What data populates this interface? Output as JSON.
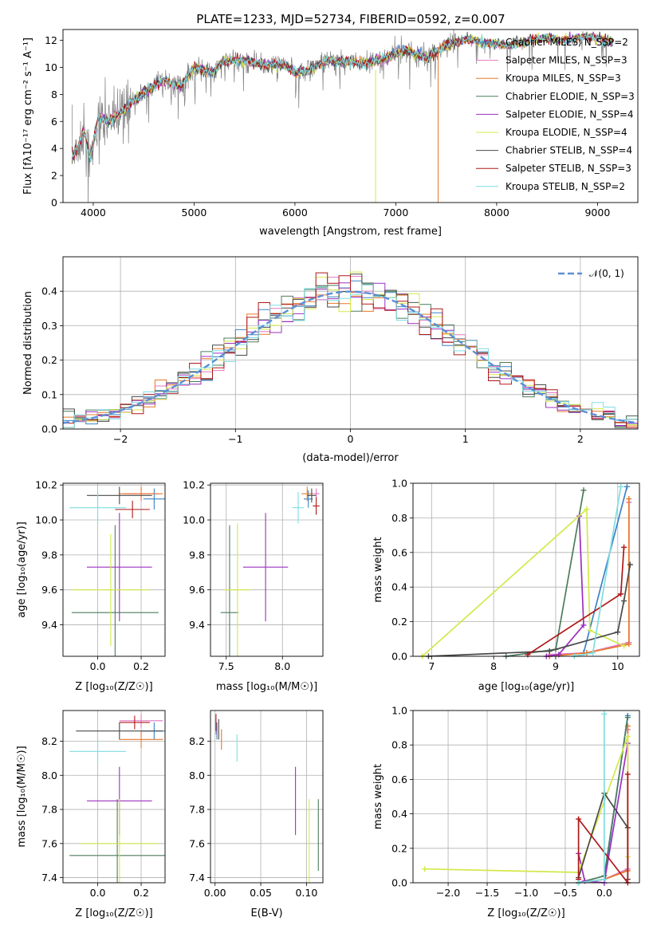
{
  "figure_title": "PLATE=1233, MJD=52734, FIBERID=0592, z=0.007",
  "colors": {
    "Chabrier MILES": "#3b82c6",
    "Salpeter MILES": "#e377c2",
    "Kroupa MILES": "#e8782a",
    "Chabrier ELODIE": "#4c7c5c",
    "Salpeter ELODIE": "#9b30c0",
    "Kroupa ELODIE": "#d4e84a",
    "Chabrier STELIB": "#4a4a4a",
    "Salpeter STELIB": "#b01818",
    "Kroupa STELIB": "#7fdde0",
    "data": "#808080",
    "gauss": "#5b8fd6"
  },
  "chart_data": [
    {
      "type": "line",
      "title": "PLATE=1233, MJD=52734, FIBERID=0592, z=0.007",
      "xlabel": "wavelength [Angstrom, rest frame]",
      "ylabel": "Flux [fλ10⁻¹⁷ erg cm⁻² s⁻¹ A⁻¹]",
      "xlim": [
        3700,
        9400
      ],
      "ylim": [
        0,
        12.8
      ],
      "xticks": [
        4000,
        5000,
        6000,
        7000,
        8000,
        9000
      ],
      "yticks": [
        0,
        2,
        4,
        6,
        8,
        10,
        12
      ],
      "grid": false,
      "legend_position": "right",
      "spectrum_anchors": {
        "x": [
          3790,
          3850,
          3900,
          3970,
          4050,
          4150,
          4250,
          4350,
          4500,
          4700,
          4862,
          5000,
          5175,
          5300,
          5500,
          5700,
          5900,
          6000,
          6150,
          6300,
          6563,
          6700,
          6900,
          7100,
          7300,
          7500,
          7700,
          7900,
          8100,
          8300,
          8500,
          8700,
          8900,
          9100
        ],
        "y": [
          3.5,
          4.0,
          5.4,
          3.2,
          6.3,
          6.0,
          6.5,
          7.2,
          8.2,
          9.0,
          8.6,
          10.0,
          9.6,
          10.5,
          10.5,
          10.2,
          10.2,
          9.6,
          9.8,
          10.5,
          10.4,
          10.3,
          10.7,
          11.3,
          10.7,
          11.6,
          12.1,
          11.8,
          11.6,
          11.9,
          12.2,
          12.0,
          12.3,
          11.9
        ]
      },
      "series": [
        {
          "name": "Chabrier MILES, N_SSP=2"
        },
        {
          "name": "Salpeter MILES, N_SSP=3"
        },
        {
          "name": "Kroupa MILES, N_SSP=3"
        },
        {
          "name": "Chabrier ELODIE, N_SSP=3"
        },
        {
          "name": "Salpeter ELODIE, N_SSP=4"
        },
        {
          "name": "Kroupa ELODIE, N_SSP=4"
        },
        {
          "name": "Chabrier STELIB, N_SSP=4"
        },
        {
          "name": "Salpeter STELIB, N_SSP=3"
        },
        {
          "name": "Kroupa STELIB, N_SSP=2"
        }
      ]
    },
    {
      "type": "bar",
      "xlabel": "(data-model)/error",
      "ylabel": "Normed distribution",
      "xlim": [
        -2.5,
        2.5
      ],
      "ylim": [
        0,
        0.5
      ],
      "xticks": [
        -2,
        -1,
        0,
        1,
        2
      ],
      "xticklabels": [
        "−2",
        "−1",
        "0",
        "1",
        "2"
      ],
      "yticks": [
        0.0,
        0.1,
        0.2,
        0.3,
        0.4
      ],
      "grid": true,
      "legend_position": "top-right",
      "legend": "𝒩(0, 1)",
      "bin_width": 0.1,
      "histogram_bins": [
        -2.5,
        2.5,
        50
      ]
    },
    {
      "type": "scatter",
      "xlabel": "Z [log₁₀(Z/Z☉)]",
      "ylabel": "age  [log₁₀(age/yr)]",
      "xlim": [
        -0.16,
        0.31
      ],
      "ylim": [
        9.22,
        10.21
      ],
      "xticks": [
        0.0,
        0.2
      ],
      "yticks": [
        9.4,
        9.6,
        9.8,
        10.0,
        10.2
      ],
      "grid": true,
      "errorbars": [
        {
          "series": "Chabrier MILES",
          "x": 0.26,
          "y": 10.12,
          "xerr": 0.05,
          "yerr": 0.06
        },
        {
          "series": "Salpeter MILES",
          "x": 0.2,
          "y": 10.15,
          "xerr": 0.08,
          "yerr": 0.04
        },
        {
          "series": "Kroupa MILES",
          "x": 0.2,
          "y": 10.15,
          "xerr": 0.1,
          "yerr": 0.04
        },
        {
          "series": "Chabrier ELODIE",
          "x": 0.08,
          "y": 9.47,
          "xerr": 0.2,
          "yerr": 0.5
        },
        {
          "series": "Salpeter ELODIE",
          "x": 0.1,
          "y": 9.73,
          "xerr": 0.15,
          "yerr": 0.31
        },
        {
          "series": "Kroupa ELODIE",
          "x": 0.06,
          "y": 9.6,
          "xerr": 0.18,
          "yerr": 0.32
        },
        {
          "series": "Chabrier STELIB",
          "x": 0.1,
          "y": 10.14,
          "xerr": 0.15,
          "yerr": 0.05
        },
        {
          "series": "Salpeter STELIB",
          "x": 0.16,
          "y": 10.06,
          "xerr": 0.08,
          "yerr": 0.05
        },
        {
          "series": "Kroupa STELIB",
          "x": 0.0,
          "y": 10.07,
          "xerr": 0.13,
          "yerr": 0.1
        }
      ]
    },
    {
      "type": "scatter",
      "xlabel": "mass [log₁₀(M/M☉)]",
      "xlim": [
        7.36,
        8.36
      ],
      "ylim": [
        9.22,
        10.21
      ],
      "xticks": [
        7.5,
        8.0
      ],
      "yticks": [
        9.4,
        9.6,
        9.8,
        10.0,
        10.2
      ],
      "grid": true,
      "errorbars": [
        {
          "series": "Chabrier MILES",
          "x": 8.23,
          "y": 10.12,
          "xerr": 0.04,
          "yerr": 0.05
        },
        {
          "series": "Salpeter MILES",
          "x": 8.3,
          "y": 10.15,
          "xerr": 0.03,
          "yerr": 0.03
        },
        {
          "series": "Kroupa MILES",
          "x": 8.22,
          "y": 10.15,
          "xerr": 0.05,
          "yerr": 0.04
        },
        {
          "series": "Chabrier ELODIE",
          "x": 7.53,
          "y": 9.47,
          "xerr": 0.08,
          "yerr": 0.5
        },
        {
          "series": "Salpeter ELODIE",
          "x": 7.85,
          "y": 9.73,
          "xerr": 0.2,
          "yerr": 0.31
        },
        {
          "series": "Kroupa ELODIE",
          "x": 7.6,
          "y": 9.6,
          "xerr": 0.12,
          "yerr": 0.38
        },
        {
          "series": "Chabrier STELIB",
          "x": 8.26,
          "y": 10.14,
          "xerr": 0.04,
          "yerr": 0.04
        },
        {
          "series": "Salpeter STELIB",
          "x": 8.3,
          "y": 10.08,
          "xerr": 0.03,
          "yerr": 0.05
        },
        {
          "series": "Kroupa STELIB",
          "x": 8.14,
          "y": 10.07,
          "xerr": 0.05,
          "yerr": 0.09
        }
      ]
    },
    {
      "type": "line",
      "xlabel": "age  [log₁₀(age/yr)]",
      "ylabel": "mass weight",
      "xlim": [
        6.7,
        10.35
      ],
      "ylim": [
        0,
        1
      ],
      "xticks": [
        7,
        8,
        9,
        10
      ],
      "yticks": [
        0.0,
        0.2,
        0.4,
        0.6,
        0.8,
        1.0
      ],
      "grid": true,
      "series": [
        {
          "series": "Chabrier MILES",
          "x": [
            8.9,
            9.45,
            10.15
          ],
          "y": [
            0.0,
            0.02,
            0.98
          ]
        },
        {
          "series": "Salpeter MILES",
          "x": [
            8.9,
            9.5,
            10.18,
            10.18
          ],
          "y": [
            0.01,
            0.02,
            0.08,
            0.89
          ]
        },
        {
          "series": "Kroupa MILES",
          "x": [
            8.9,
            9.5,
            10.18,
            10.18
          ],
          "y": [
            0.0,
            0.02,
            0.07,
            0.91
          ]
        },
        {
          "series": "Chabrier ELODIE",
          "x": [
            8.2,
            9.0,
            9.45
          ],
          "y": [
            0.0,
            0.04,
            0.96
          ]
        },
        {
          "series": "Salpeter ELODIE",
          "x": [
            8.85,
            9.05,
            9.45,
            9.38
          ],
          "y": [
            0.0,
            0.01,
            0.18,
            0.81
          ]
        },
        {
          "series": "Kroupa ELODIE",
          "x": [
            6.85,
            9.5,
            9.55,
            10.1
          ],
          "y": [
            0.0,
            0.85,
            0.15,
            0.06
          ]
        },
        {
          "series": "Chabrier STELIB",
          "x": [
            6.95,
            8.9,
            10.0,
            10.1,
            10.2
          ],
          "y": [
            0.0,
            0.03,
            0.14,
            0.32,
            0.53
          ]
        },
        {
          "series": "Salpeter STELIB",
          "x": [
            8.55,
            10.05,
            10.1
          ],
          "y": [
            0.01,
            0.36,
            0.63
          ]
        },
        {
          "series": "Kroupa STELIB",
          "x": [
            9.3,
            9.6,
            10.05
          ],
          "y": [
            0.0,
            0.02,
            0.98
          ]
        }
      ]
    },
    {
      "type": "scatter",
      "xlabel": "Z [log₁₀(Z/Z☉)]",
      "ylabel": "mass [log₁₀(M/M☉)]",
      "xlim": [
        -0.16,
        0.31
      ],
      "ylim": [
        7.37,
        8.38
      ],
      "xticks": [
        0.0,
        0.2
      ],
      "yticks": [
        7.4,
        7.6,
        7.8,
        8.0,
        8.2
      ],
      "grid": true,
      "errorbars": [
        {
          "series": "Chabrier MILES",
          "x": 0.26,
          "y": 8.26,
          "xerr": 0.06,
          "yerr": 0.05
        },
        {
          "series": "Salpeter MILES",
          "x": 0.2,
          "y": 8.32,
          "xerr": 0.1,
          "yerr": 0.04
        },
        {
          "series": "Kroupa MILES",
          "x": 0.2,
          "y": 8.21,
          "xerr": 0.1,
          "yerr": 0.05
        },
        {
          "series": "Chabrier ELODIE",
          "x": 0.09,
          "y": 7.53,
          "xerr": 0.22,
          "yerr": 0.33
        },
        {
          "series": "Salpeter ELODIE",
          "x": 0.1,
          "y": 7.85,
          "xerr": 0.15,
          "yerr": 0.2
        },
        {
          "series": "Kroupa ELODIE",
          "x": 0.1,
          "y": 7.6,
          "xerr": 0.18,
          "yerr": 0.26
        },
        {
          "series": "Chabrier STELIB",
          "x": 0.1,
          "y": 8.26,
          "xerr": 0.2,
          "yerr": 0.05
        },
        {
          "series": "Salpeter STELIB",
          "x": 0.17,
          "y": 8.31,
          "xerr": 0.07,
          "yerr": 0.04
        },
        {
          "series": "Kroupa STELIB",
          "x": 0.0,
          "y": 8.14,
          "xerr": 0.13,
          "yerr": 0.07
        }
      ]
    },
    {
      "type": "scatter",
      "xlabel": "E(B-V)",
      "xlim": [
        -0.005,
        0.118
      ],
      "ylim": [
        7.37,
        8.38
      ],
      "xticks": [
        0.0,
        0.05,
        0.1
      ],
      "xticklabels": [
        "0.00",
        "0.05",
        "0.10"
      ],
      "yticks": [
        7.4,
        7.6,
        7.8,
        8.0,
        8.2
      ],
      "grid": true,
      "errorbars": [
        {
          "series": "Chabrier MILES",
          "x": 0.002,
          "y": 8.26,
          "xerr": 0.0,
          "yerr": 0.05
        },
        {
          "series": "Salpeter MILES",
          "x": 0.001,
          "y": 8.29,
          "xerr": 0.0,
          "yerr": 0.05
        },
        {
          "series": "Kroupa MILES",
          "x": 0.007,
          "y": 8.21,
          "xerr": 0.0,
          "yerr": 0.06
        },
        {
          "series": "Chabrier ELODIE",
          "x": 0.113,
          "y": 7.65,
          "xerr": 0.0,
          "yerr": 0.21
        },
        {
          "series": "Salpeter ELODIE",
          "x": 0.088,
          "y": 7.85,
          "xerr": 0.0,
          "yerr": 0.2
        },
        {
          "series": "Kroupa ELODIE",
          "x": 0.103,
          "y": 7.6,
          "xerr": 0.0,
          "yerr": 0.26
        },
        {
          "series": "Chabrier STELIB",
          "x": 0.004,
          "y": 8.27,
          "xerr": 0.0,
          "yerr": 0.06
        },
        {
          "series": "Salpeter STELIB",
          "x": 0.001,
          "y": 8.31,
          "xerr": 0.0,
          "yerr": 0.05
        },
        {
          "series": "Kroupa STELIB",
          "x": 0.024,
          "y": 8.16,
          "xerr": 0.0,
          "yerr": 0.08
        }
      ]
    },
    {
      "type": "line",
      "xlabel": "Z [log₁₀(Z/Z☉)]",
      "ylabel": "mass weight",
      "xlim": [
        -2.45,
        0.45
      ],
      "ylim": [
        0,
        1
      ],
      "xticks": [
        -2.0,
        -1.5,
        -1.0,
        -0.5,
        0.0
      ],
      "xticklabels": [
        "−2.0",
        "−1.5",
        "−1.0",
        "−0.5",
        "0.0"
      ],
      "yticks": [
        0.0,
        0.2,
        0.4,
        0.6,
        0.8,
        1.0
      ],
      "grid": true,
      "series": [
        {
          "series": "Chabrier MILES",
          "x": [
            -0.33,
            0.0,
            0.3
          ],
          "y": [
            0.0,
            0.02,
            0.97
          ]
        },
        {
          "series": "Salpeter MILES",
          "x": [
            -0.33,
            0.0,
            0.3,
            0.3
          ],
          "y": [
            0.0,
            0.02,
            0.08,
            0.89
          ]
        },
        {
          "series": "Kroupa MILES",
          "x": [
            -0.33,
            0.0,
            0.3,
            0.3
          ],
          "y": [
            0.0,
            0.02,
            0.07,
            0.91
          ]
        },
        {
          "series": "Chabrier ELODIE",
          "x": [
            -0.33,
            0.0,
            0.3
          ],
          "y": [
            0.0,
            0.04,
            0.96
          ]
        },
        {
          "series": "Salpeter ELODIE",
          "x": [
            -0.33,
            -0.25,
            0.0,
            0.3
          ],
          "y": [
            0.17,
            0.01,
            0.0,
            0.81
          ]
        },
        {
          "series": "Kroupa ELODIE",
          "x": [
            -2.3,
            -0.33,
            0.3,
            0.3
          ],
          "y": [
            0.08,
            0.06,
            0.85,
            0.15
          ]
        },
        {
          "series": "Chabrier STELIB",
          "x": [
            -0.33,
            0.0,
            0.3,
            0.3
          ],
          "y": [
            0.03,
            0.52,
            0.32,
            0.02
          ]
        },
        {
          "series": "Salpeter STELIB",
          "x": [
            -0.33,
            -0.33,
            0.3,
            0.3
          ],
          "y": [
            0.02,
            0.37,
            0.0,
            0.63
          ]
        },
        {
          "series": "Kroupa STELIB",
          "x": [
            -0.33,
            0.0,
            0.0
          ],
          "y": [
            0.0,
            0.02,
            0.98
          ]
        }
      ]
    }
  ]
}
